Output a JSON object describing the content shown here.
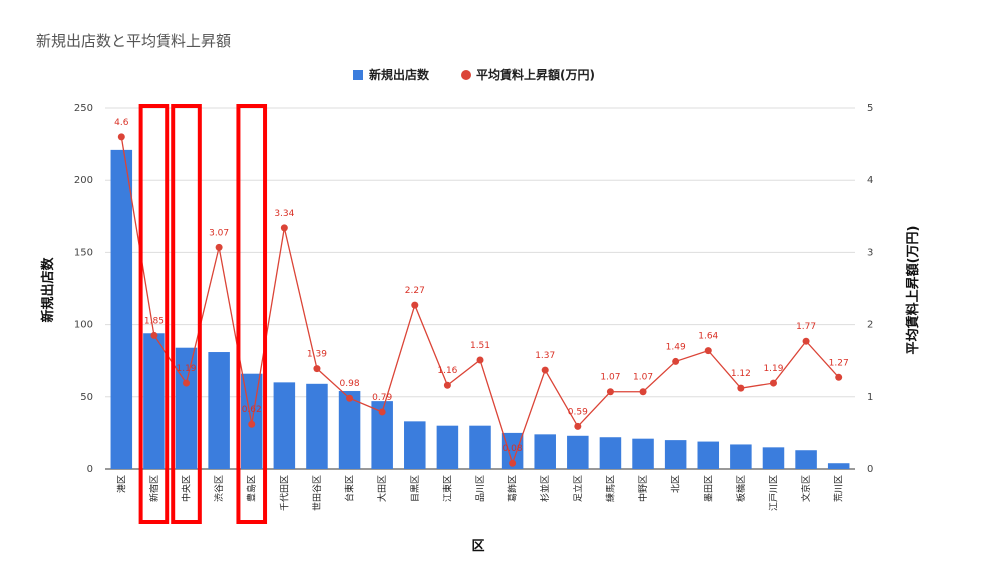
{
  "chart_data": {
    "type": "bar",
    "title": "新規出店数と平均賃料上昇額",
    "xlabel": "区",
    "ylabel": "新規出店数",
    "y2label": "平均賃料上昇額(万円)",
    "ylim": [
      0,
      250
    ],
    "y2lim": [
      0,
      5
    ],
    "yticks": [
      "0",
      "50",
      "100",
      "150",
      "200",
      "250"
    ],
    "y2ticks": [
      "0",
      "1",
      "2",
      "3",
      "4",
      "5"
    ],
    "legend_position": "top",
    "grid": true,
    "categories": [
      "港区",
      "新宿区",
      "中央区",
      "渋谷区",
      "豊島区",
      "千代田区",
      "世田谷区",
      "台東区",
      "大田区",
      "目黒区",
      "江東区",
      "品川区",
      "葛飾区",
      "杉並区",
      "足立区",
      "練馬区",
      "中野区",
      "北区",
      "墨田区",
      "板橋区",
      "江戸川区",
      "文京区",
      "荒川区"
    ],
    "series": [
      {
        "name": "新規出店数",
        "type": "bar",
        "axis": "left",
        "color": "#3b7ddd",
        "values": [
          221,
          94,
          84,
          81,
          66,
          60,
          59,
          54,
          47,
          33,
          30,
          30,
          25,
          24,
          23,
          22,
          21,
          20,
          19,
          17,
          15,
          13,
          4
        ]
      },
      {
        "name": "平均賃料上昇額(万円)",
        "type": "line",
        "axis": "right",
        "color": "#db4437",
        "values": [
          4.6,
          1.85,
          1.19,
          3.07,
          0.62,
          3.34,
          1.39,
          0.98,
          0.79,
          2.27,
          1.16,
          1.51,
          0.08,
          1.37,
          0.59,
          1.07,
          1.07,
          1.49,
          1.64,
          1.12,
          1.19,
          1.77,
          1.27
        ],
        "labels": [
          "4.6",
          "1.85",
          "1.19",
          "3.07",
          "0.62",
          "3.34",
          "1.39",
          "0.98",
          "0.79",
          "2.27",
          "1.16",
          "1.51",
          "0.08",
          "1.37",
          "0.59",
          "1.07",
          "1.07",
          "1.49",
          "1.64",
          "1.12",
          "1.19",
          "1.77",
          "1.27"
        ]
      }
    ],
    "highlights": [
      {
        "categories": [
          1
        ],
        "color": "#ff0000"
      },
      {
        "categories": [
          2
        ],
        "color": "#ff0000"
      },
      {
        "categories": [
          4
        ],
        "color": "#ff0000"
      }
    ]
  }
}
